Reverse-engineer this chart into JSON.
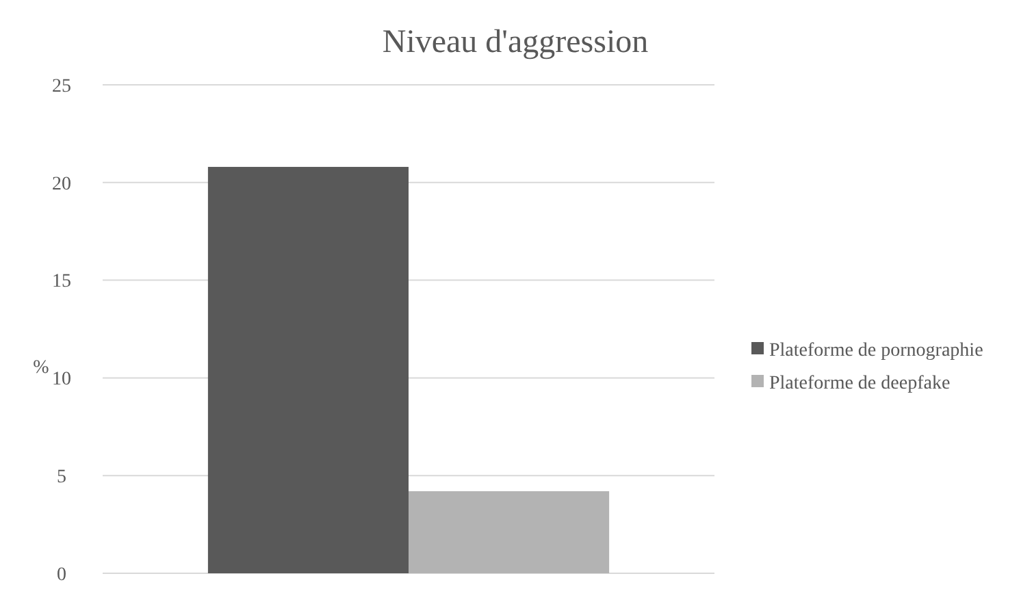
{
  "chart_data": {
    "type": "bar",
    "title": "Niveau d'aggression",
    "ylabel": "%",
    "categories": [
      null
    ],
    "series": [
      {
        "name": "Plateforme de pornographie",
        "color": "#595959",
        "values": [
          20.8
        ]
      },
      {
        "name": "Plateforme de deepfake",
        "color": "#b3b3b3",
        "values": [
          4.2
        ]
      }
    ],
    "ylim": [
      0,
      25
    ],
    "yticks": [
      0,
      5,
      10,
      15,
      20,
      25
    ],
    "grid": "y",
    "legend": "right"
  }
}
